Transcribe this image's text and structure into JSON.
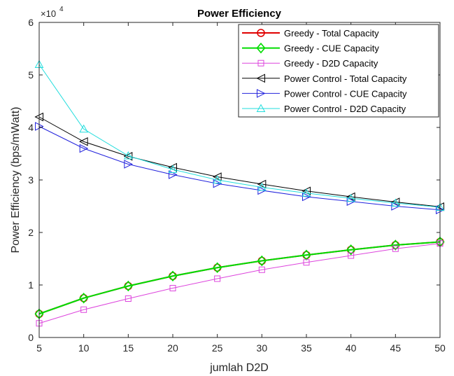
{
  "chart_data": {
    "type": "line",
    "title": "Power Efficiency",
    "xlabel": "jumlah D2D",
    "ylabel": "Power Efficiency (bps/mWatt)",
    "y_exponent_label": "×10",
    "y_exponent_power": "4",
    "x": [
      5,
      10,
      15,
      20,
      25,
      30,
      35,
      40,
      45,
      50
    ],
    "xlim": [
      5,
      50
    ],
    "ylim": [
      0,
      6
    ],
    "x_ticks": [
      "5",
      "10",
      "15",
      "20",
      "25",
      "30",
      "35",
      "40",
      "45",
      "50"
    ],
    "y_ticks": [
      "0",
      "1",
      "2",
      "3",
      "4",
      "5",
      "6"
    ],
    "grid": false,
    "legend_position": "top-right",
    "series": [
      {
        "name": "Greedy - Total Capacity",
        "color": "#e00000",
        "marker": "circle",
        "width": 2,
        "values": [
          0.45,
          0.75,
          0.98,
          1.17,
          1.33,
          1.46,
          1.57,
          1.67,
          1.76,
          1.82
        ]
      },
      {
        "name": "Greedy - CUE Capacity",
        "color": "#00dd00",
        "marker": "diamond",
        "width": 2,
        "values": [
          0.45,
          0.75,
          0.98,
          1.17,
          1.33,
          1.46,
          1.57,
          1.67,
          1.76,
          1.82
        ]
      },
      {
        "name": "Greedy - D2D Capacity",
        "color": "#dd44dd",
        "marker": "square",
        "width": 1,
        "values": [
          0.27,
          0.53,
          0.74,
          0.94,
          1.12,
          1.29,
          1.43,
          1.56,
          1.69,
          1.79
        ]
      },
      {
        "name": "Power Control - Total Capacity",
        "color": "#000000",
        "marker": "triangle-left",
        "width": 1,
        "values": [
          4.2,
          3.73,
          3.45,
          3.24,
          3.06,
          2.92,
          2.79,
          2.68,
          2.58,
          2.49
        ]
      },
      {
        "name": "Power Control - CUE Capacity",
        "color": "#2222dd",
        "marker": "triangle-right",
        "width": 1,
        "values": [
          4.02,
          3.6,
          3.3,
          3.1,
          2.93,
          2.8,
          2.68,
          2.59,
          2.5,
          2.43
        ]
      },
      {
        "name": "Power Control - D2D Capacity",
        "color": "#22dddd",
        "marker": "triangle-up",
        "width": 1,
        "values": [
          5.2,
          3.97,
          3.46,
          3.2,
          3.0,
          2.86,
          2.75,
          2.65,
          2.56,
          2.48
        ]
      }
    ]
  }
}
